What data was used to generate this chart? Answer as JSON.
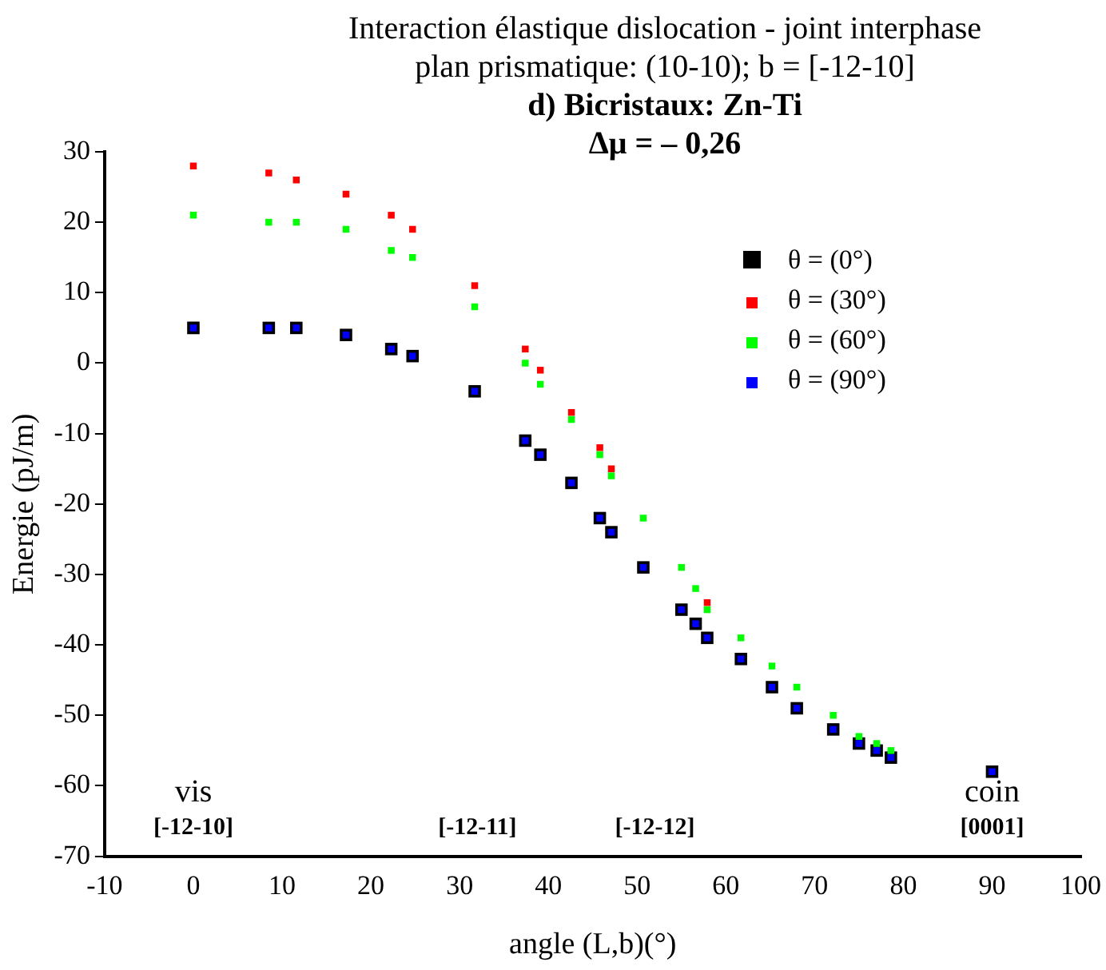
{
  "chart_data": {
    "type": "scatter",
    "title": "Interaction élastique  dislocation - joint  interphase",
    "subtitle": "plan prismatique: (10-10); b = [-12-10]",
    "annotations": [
      "d) Bicristaux: Zn-Ti",
      "Δμ = – 0,26",
      "vis",
      "[-12-10]",
      "[-12-11]",
      "[-12-12]",
      "coin",
      "[0001]"
    ],
    "xlabel": "angle (L,b)(°)",
    "ylabel": "Energie (pJ/m)",
    "xlim": [
      -10,
      100
    ],
    "xticks": [
      -10,
      0,
      10,
      20,
      30,
      40,
      50,
      60,
      70,
      80,
      90,
      100
    ],
    "ylim": [
      -70,
      30
    ],
    "yticks": [
      -70,
      -60,
      -50,
      -40,
      -30,
      -20,
      -10,
      0,
      10,
      20,
      30
    ],
    "grid": false,
    "legend": "top right",
    "marker": "square",
    "series": [
      {
        "name": "θ = (0°)",
        "color": "#000000",
        "x": [
          0,
          8.5,
          11.6,
          17.2,
          22.3,
          24.7,
          31.7,
          37.4,
          39.1,
          42.6,
          45.8,
          47.1,
          50.7,
          55,
          56.6,
          57.9,
          61.7,
          65.2,
          68,
          72.1,
          75,
          77,
          78.6,
          90
        ],
        "values": [
          5,
          5,
          5,
          4,
          2,
          1,
          -4,
          -11,
          -13,
          -17,
          -22,
          -24,
          -29,
          -35,
          -37,
          -39,
          -42,
          -46,
          -49,
          -52,
          -54,
          -55,
          -56,
          -58
        ]
      },
      {
        "name": "θ = (30°)",
        "color": "#ff0000",
        "x": [
          0,
          8.5,
          11.6,
          17.2,
          22.3,
          24.7,
          31.7,
          37.4,
          39.1,
          42.6,
          45.8,
          47.1,
          57.9
        ],
        "values": [
          28,
          27,
          26,
          24,
          21,
          19,
          11,
          2,
          -1,
          -7,
          -12,
          -15,
          -34
        ]
      },
      {
        "name": "θ = (60°)",
        "color": "#00ff00",
        "x": [
          0,
          8.5,
          11.6,
          17.2,
          22.3,
          24.7,
          31.7,
          37.4,
          39.1,
          42.6,
          45.8,
          47.1,
          50.7,
          55,
          56.6,
          57.9,
          61.7,
          65.2,
          68,
          72.1,
          75,
          77,
          78.6
        ],
        "values": [
          21,
          20,
          20,
          19,
          16,
          15,
          8,
          0,
          -3,
          -8,
          -13,
          -16,
          -22,
          -29,
          -32,
          -35,
          -39,
          -43,
          -46,
          -50,
          -53,
          -54,
          -55
        ]
      },
      {
        "name": "θ = (90°)",
        "color": "#0000ff",
        "x": [
          0,
          8.5,
          11.6,
          17.2,
          22.3,
          24.7,
          31.7,
          37.4,
          39.1,
          42.6,
          45.8,
          47.1,
          50.7,
          55,
          56.6,
          57.9,
          61.7,
          65.2,
          68,
          72.1,
          75,
          77,
          78.6,
          90
        ],
        "values": [
          5,
          5,
          5,
          4,
          2,
          1,
          -4,
          -11,
          -13,
          -17,
          -22,
          -24,
          -29,
          -35,
          -37,
          -39,
          -42,
          -46,
          -49,
          -52,
          -54,
          -55,
          -56,
          -58
        ]
      }
    ]
  }
}
